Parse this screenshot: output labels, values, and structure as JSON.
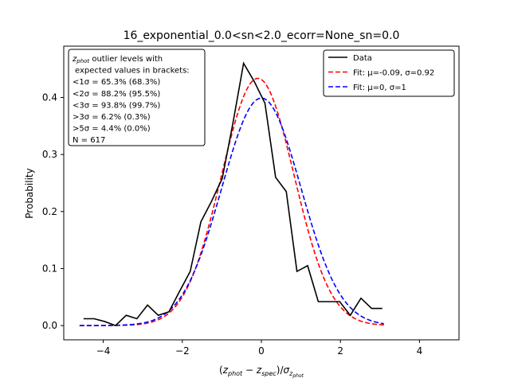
{
  "chart_data": {
    "type": "line",
    "title": "16_exponential_0.0<sn<2.0_ecorr=None_sn=0.0",
    "xlabel": "(z_phot − z_spec)/σ_z_phot",
    "ylabel": "Probability",
    "xlim": [
      -5,
      5
    ],
    "ylim": [
      -0.025,
      0.49
    ],
    "xticks": [
      -4,
      -2,
      0,
      2,
      4
    ],
    "xtick_labels": [
      "−4",
      "−2",
      "0",
      "2",
      "4"
    ],
    "yticks": [
      0.0,
      0.1,
      0.2,
      0.3,
      0.4
    ],
    "ytick_labels": [
      "0.0",
      "0.1",
      "0.2",
      "0.3",
      "0.4"
    ],
    "grid": false,
    "legend_placement": "top-right",
    "series": [
      {
        "name": "Data",
        "color": "#000000",
        "style": "solid",
        "x": [
          -4.5,
          -4.23,
          -3.96,
          -3.69,
          -3.42,
          -3.15,
          -2.88,
          -2.61,
          -2.34,
          -2.07,
          -1.8,
          -1.53,
          -1.26,
          -0.99,
          -0.72,
          -0.45,
          -0.18,
          0.09,
          0.36,
          0.63,
          0.9,
          1.17,
          1.44,
          1.71,
          1.98,
          2.25,
          2.52,
          2.79,
          3.06
        ],
        "y": [
          0.012,
          0.012,
          0.007,
          0.0,
          0.018,
          0.012,
          0.036,
          0.018,
          0.024,
          0.06,
          0.095,
          0.182,
          0.218,
          0.258,
          0.355,
          0.46,
          0.428,
          0.39,
          0.26,
          0.235,
          0.095,
          0.105,
          0.042,
          0.042,
          0.042,
          0.018,
          0.048,
          0.03,
          0.03
        ]
      },
      {
        "name": "Fit: μ=-0.09, σ=0.92",
        "color": "#ff0000",
        "style": "dashed",
        "mu": -0.09,
        "sigma": 0.92,
        "x_range": [
          -4.6,
          3.1
        ]
      },
      {
        "name": "Fit: μ=0, σ=1",
        "color": "#0000ff",
        "style": "dashed",
        "mu": 0,
        "sigma": 1,
        "x_range": [
          -4.6,
          3.1
        ]
      }
    ],
    "annotation": {
      "lines": [
        "z_phot outlier levels with",
        "expected values in brackets:",
        "<1σ = 65.3% (68.3%)",
        "<2σ = 88.2% (95.5%)",
        "<3σ = 93.8% (99.7%)",
        ">3σ = 6.2% (0.3%)",
        ">5σ = 4.4% (0.0%)",
        "N = 617"
      ]
    }
  }
}
